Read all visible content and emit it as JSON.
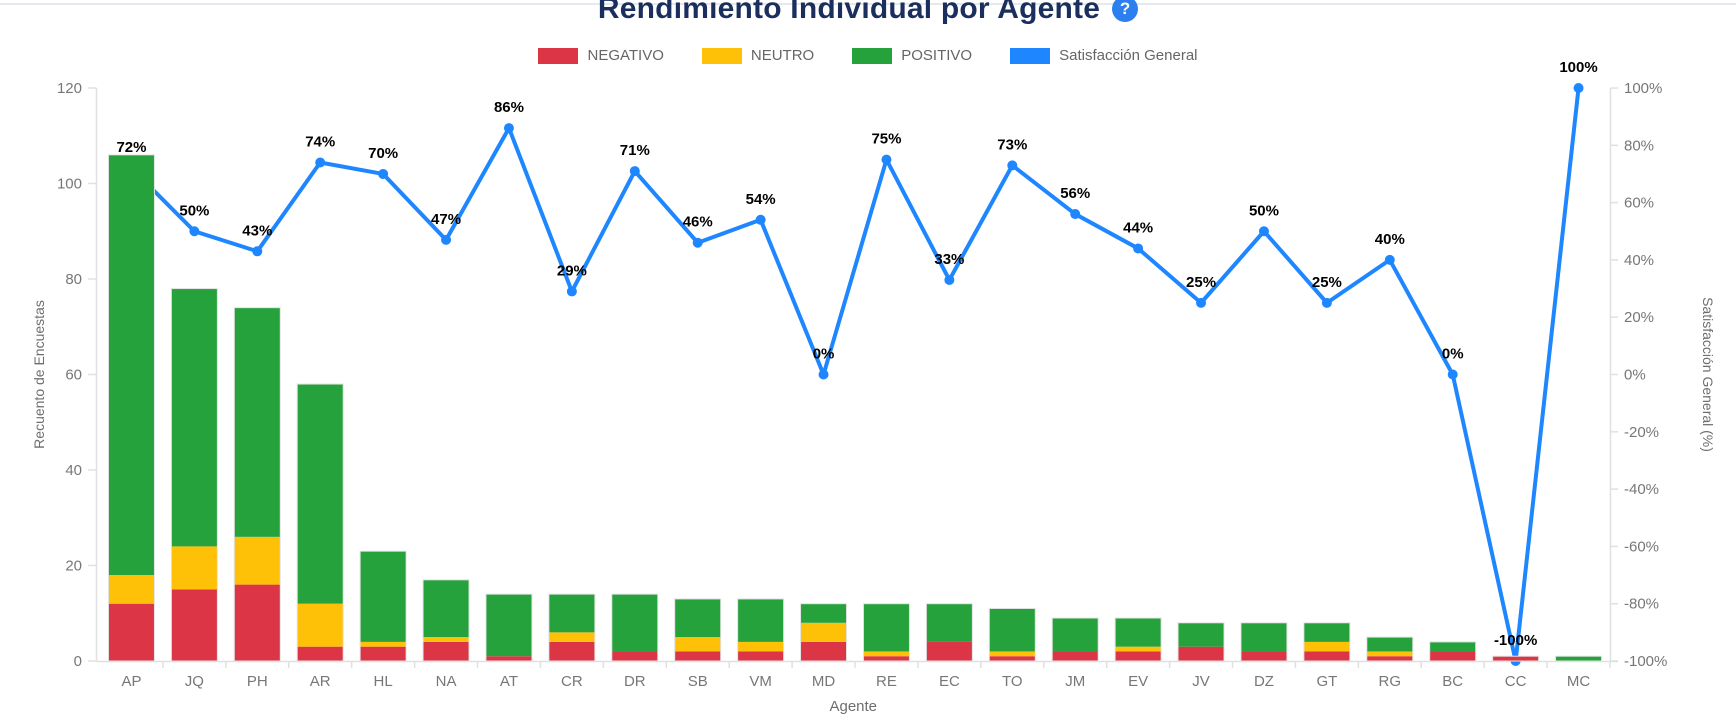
{
  "header": {
    "title": "Rendimiento Individual por Agente",
    "help_icon": "?",
    "title_color": "#1b2f5e",
    "help_icon_color": "#2d7ff0"
  },
  "legend": {
    "items": [
      {
        "label": "NEGATIVO",
        "color": "#DC3545"
      },
      {
        "label": "NEUTRO",
        "color": "#FFC107"
      },
      {
        "label": "POSITIVO",
        "color": "#26A23D"
      },
      {
        "label": "Satisfacción General",
        "color": "#1E87FF"
      }
    ]
  },
  "chart_data": {
    "type": "combo_stacked_bar_line",
    "title": "Rendimiento Individual por Agente",
    "legend_position": "top",
    "grid": false,
    "categories": [
      "AP",
      "JQ",
      "PH",
      "AR",
      "HL",
      "NA",
      "AT",
      "CR",
      "DR",
      "SB",
      "VM",
      "MD",
      "RE",
      "EC",
      "TO",
      "JM",
      "EV",
      "JV",
      "DZ",
      "GT",
      "RG",
      "BC",
      "CC",
      "MC"
    ],
    "series": [
      {
        "name": "NEGATIVO",
        "type": "bar",
        "stack": "encuestas",
        "axis": "left",
        "color": "#DC3545",
        "values": [
          12,
          15,
          16,
          3,
          3,
          4,
          1,
          4,
          2,
          2,
          2,
          4,
          1,
          4,
          1,
          2,
          2,
          3,
          2,
          2,
          1,
          2,
          1,
          0
        ]
      },
      {
        "name": "NEUTRO",
        "type": "bar",
        "stack": "encuestas",
        "axis": "left",
        "color": "#FFC107",
        "values": [
          6,
          9,
          10,
          9,
          1,
          1,
          0,
          2,
          0,
          3,
          2,
          4,
          1,
          0,
          1,
          0,
          1,
          0,
          0,
          2,
          1,
          0,
          0,
          0
        ]
      },
      {
        "name": "POSITIVO",
        "type": "bar",
        "stack": "encuestas",
        "axis": "left",
        "color": "#26A23D",
        "values": [
          88,
          54,
          48,
          46,
          19,
          12,
          13,
          8,
          12,
          8,
          9,
          4,
          10,
          8,
          9,
          7,
          6,
          5,
          6,
          4,
          3,
          2,
          0,
          1
        ]
      },
      {
        "name": "Satisfacción General",
        "type": "line",
        "axis": "right",
        "color": "#1E87FF",
        "values": [
          72,
          50,
          43,
          74,
          70,
          47,
          86,
          29,
          71,
          46,
          54,
          0,
          75,
          33,
          73,
          56,
          44,
          25,
          50,
          25,
          40,
          0,
          -100,
          100
        ],
        "point_labels": [
          "72%",
          "50%",
          "43%",
          "74%",
          "70%",
          "47%",
          "86%",
          "29%",
          "71%",
          "46%",
          "54%",
          "0%",
          "75%",
          "33%",
          "73%",
          "56%",
          "44%",
          "25%",
          "50%",
          "25%",
          "40%",
          "0%",
          "-100%",
          "100%"
        ]
      }
    ],
    "axes": {
      "left": {
        "title": "Recuento de Encuestas",
        "min": 0,
        "max": 120,
        "step": 20,
        "tick_labels": [
          "0",
          "20",
          "40",
          "60",
          "80",
          "100",
          "120"
        ]
      },
      "right": {
        "title": "Satisfacción General (%)",
        "min": -100,
        "max": 100,
        "step": 20,
        "tick_labels": [
          "-100%",
          "-80%",
          "-60%",
          "-40%",
          "-20%",
          "0%",
          "20%",
          "40%",
          "60%",
          "80%",
          "100%"
        ]
      },
      "x": {
        "title": "Agente"
      }
    }
  }
}
